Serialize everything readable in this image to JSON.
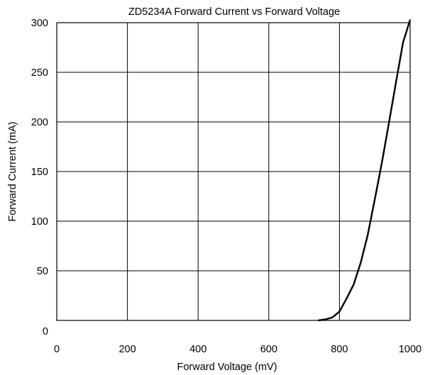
{
  "chart_data": {
    "type": "line",
    "title": "ZD5234A Forward Current vs Forward Voltage",
    "xlabel": "Forward Voltage (mV)",
    "ylabel": "Forward Current (mA)",
    "xlim": [
      0,
      1000
    ],
    "ylim": [
      0,
      300
    ],
    "x_ticks": [
      0,
      200,
      400,
      600,
      800,
      1000
    ],
    "y_ticks": [
      0,
      50,
      100,
      150,
      200,
      250,
      300
    ],
    "grid": true,
    "legend": "none",
    "series": [
      {
        "color": "#000000",
        "x": [
          740,
          760,
          780,
          800,
          820,
          840,
          860,
          880,
          900,
          920,
          940,
          960,
          980,
          1000
        ],
        "y": [
          0,
          1,
          3,
          9,
          22,
          36,
          58,
          86,
          122,
          159,
          199,
          240,
          280,
          303
        ]
      }
    ]
  }
}
